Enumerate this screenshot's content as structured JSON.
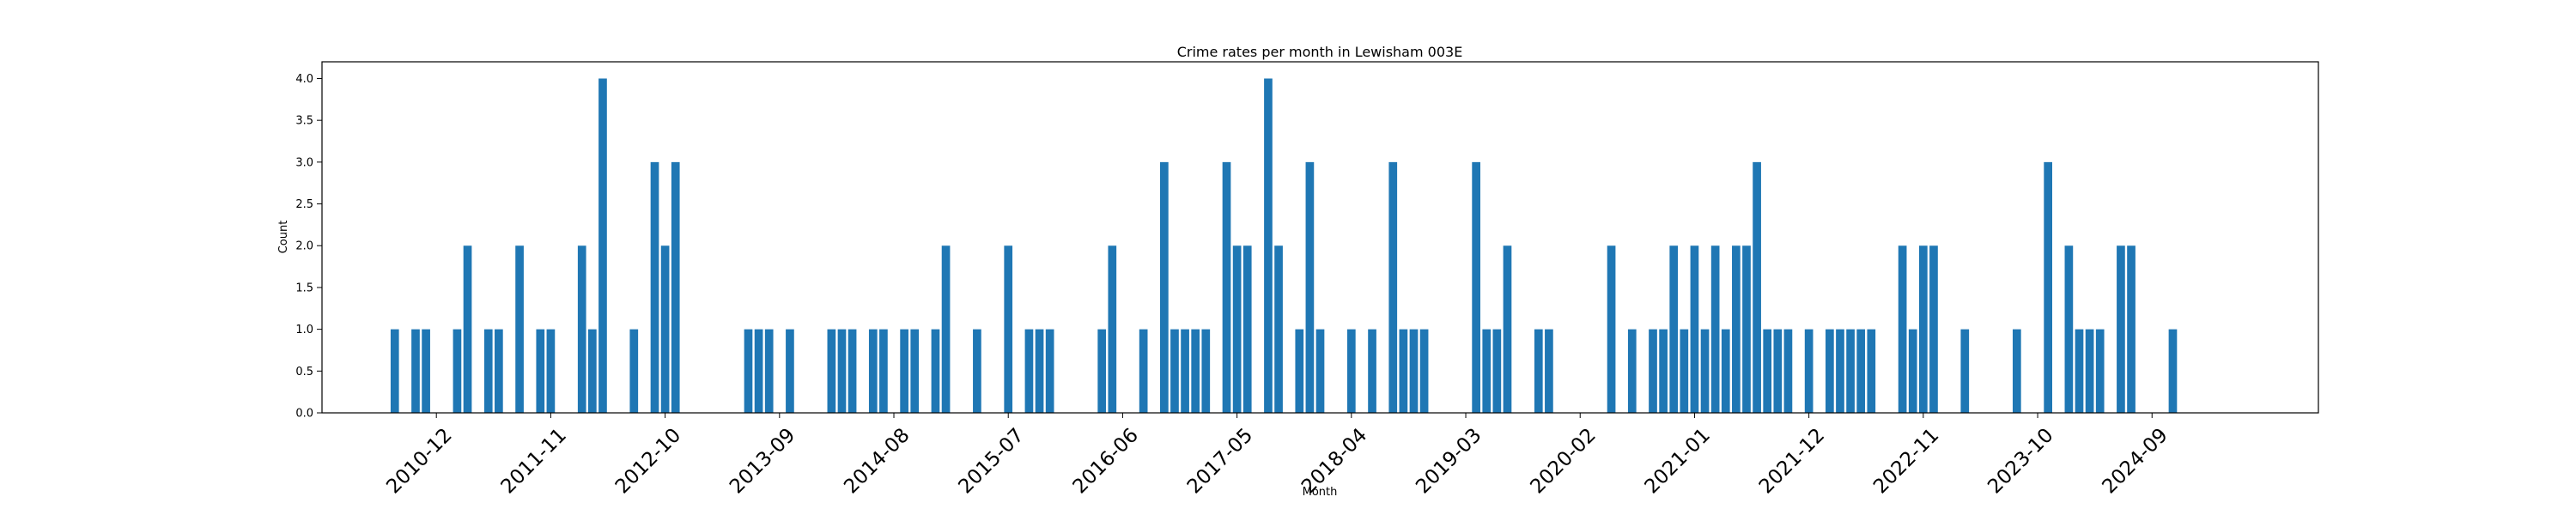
{
  "chart_data": {
    "type": "bar",
    "title": "Crime rates per month in Lewisham 003E",
    "xlabel": "Month",
    "ylabel": "Count",
    "ylim": [
      0,
      4.2
    ],
    "xlim": [
      "2010-01",
      "2026-01"
    ],
    "color": "#1f77b4",
    "grid": false,
    "yticks": [
      "0.0",
      "0.5",
      "1.0",
      "1.5",
      "2.0",
      "2.5",
      "3.0",
      "3.5",
      "4.0"
    ],
    "xticks": [
      "2010-12",
      "2011-11",
      "2012-10",
      "2013-09",
      "2014-08",
      "2015-07",
      "2016-06",
      "2017-05",
      "2018-04",
      "2019-03",
      "2020-02",
      "2021-01",
      "2021-12",
      "2022-11",
      "2023-10",
      "2024-09"
    ],
    "categories": [
      "2010-08",
      "2010-10",
      "2010-11",
      "2011-02",
      "2011-03",
      "2011-05",
      "2011-06",
      "2011-08",
      "2011-10",
      "2011-11",
      "2012-02",
      "2012-03",
      "2012-04",
      "2012-07",
      "2012-09",
      "2012-10",
      "2012-11",
      "2013-06",
      "2013-07",
      "2013-08",
      "2013-10",
      "2014-02",
      "2014-03",
      "2014-04",
      "2014-06",
      "2014-07",
      "2014-09",
      "2014-10",
      "2014-12",
      "2015-01",
      "2015-04",
      "2015-07",
      "2015-09",
      "2015-10",
      "2015-11",
      "2016-04",
      "2016-05",
      "2016-08",
      "2016-10",
      "2016-11",
      "2016-12",
      "2017-01",
      "2017-02",
      "2017-04",
      "2017-05",
      "2017-06",
      "2017-08",
      "2017-09",
      "2017-11",
      "2017-12",
      "2018-01",
      "2018-04",
      "2018-06",
      "2018-08",
      "2018-09",
      "2018-10",
      "2018-11",
      "2019-04",
      "2019-05",
      "2019-06",
      "2019-07",
      "2019-10",
      "2019-11",
      "2020-05",
      "2020-07",
      "2020-09",
      "2020-10",
      "2020-11",
      "2020-12",
      "2021-01",
      "2021-02",
      "2021-03",
      "2021-04",
      "2021-05",
      "2021-06",
      "2021-07",
      "2021-08",
      "2021-09",
      "2021-10",
      "2021-12",
      "2022-02",
      "2022-03",
      "2022-04",
      "2022-05",
      "2022-06",
      "2022-09",
      "2022-10",
      "2022-11",
      "2022-12",
      "2023-03",
      "2023-08",
      "2023-11",
      "2024-01",
      "2024-02",
      "2024-03",
      "2024-04",
      "2024-06",
      "2024-07",
      "2024-11"
    ],
    "values": [
      1,
      1,
      1,
      1,
      2,
      1,
      1,
      2,
      1,
      1,
      2,
      1,
      4,
      1,
      3,
      2,
      3,
      1,
      1,
      1,
      1,
      1,
      1,
      1,
      1,
      1,
      1,
      1,
      1,
      2,
      1,
      2,
      1,
      1,
      1,
      1,
      2,
      1,
      3,
      1,
      1,
      1,
      1,
      3,
      2,
      2,
      4,
      2,
      1,
      3,
      1,
      1,
      1,
      3,
      1,
      1,
      1,
      3,
      1,
      1,
      2,
      1,
      1,
      2,
      1,
      1,
      1,
      2,
      1,
      2,
      1,
      2,
      1,
      2,
      2,
      3,
      1,
      1,
      1,
      1,
      1,
      1,
      1,
      1,
      1,
      2,
      1,
      2,
      2,
      1,
      1,
      3,
      2,
      1,
      1,
      1,
      2,
      2,
      1
    ]
  }
}
